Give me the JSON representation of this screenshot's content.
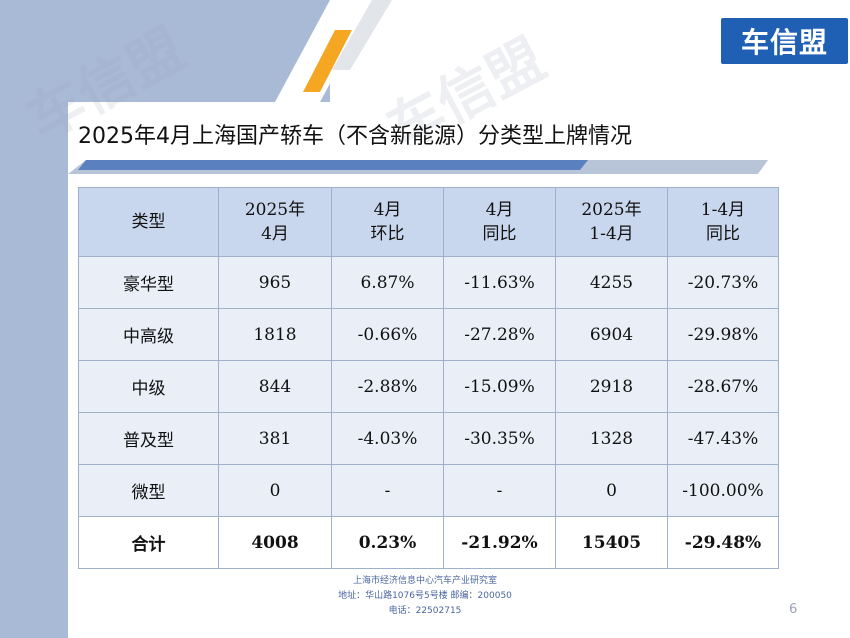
{
  "brand": {
    "logo_text": "车信盟",
    "watermark_text": "车信盟"
  },
  "title": "2025年4月上海国产轿车（不含新能源）分类型上牌情况",
  "table": {
    "headers": [
      [
        "类型"
      ],
      [
        "2025年",
        "4月"
      ],
      [
        "4月",
        "环比"
      ],
      [
        "4月",
        "同比"
      ],
      [
        "2025年",
        "1-4月"
      ],
      [
        "1-4月",
        "同比"
      ]
    ],
    "rows": [
      {
        "category": "豪华型",
        "april": "965",
        "mom": "6.87%",
        "yoy": "-11.63%",
        "ytd": "4255",
        "ytd_yoy": "-20.73%"
      },
      {
        "category": "中高级",
        "april": "1818",
        "mom": "-0.66%",
        "yoy": "-27.28%",
        "ytd": "6904",
        "ytd_yoy": "-29.98%"
      },
      {
        "category": "中级",
        "april": "844",
        "mom": "-2.88%",
        "yoy": "-15.09%",
        "ytd": "2918",
        "ytd_yoy": "-28.67%"
      },
      {
        "category": "普及型",
        "april": "381",
        "mom": "-4.03%",
        "yoy": "-30.35%",
        "ytd": "1328",
        "ytd_yoy": "-47.43%"
      },
      {
        "category": "微型",
        "april": "0",
        "mom": "-",
        "yoy": "-",
        "ytd": "0",
        "ytd_yoy": "-100.00%"
      }
    ],
    "total": {
      "category": "合计",
      "april": "4008",
      "mom": "0.23%",
      "yoy": "-21.92%",
      "ytd": "15405",
      "ytd_yoy": "-29.48%"
    }
  },
  "footer": {
    "line1": "上海市经济信息中心汽车产业研究室",
    "line2": "地址：华山路1076号5号楼    邮编：200050",
    "line3": "电话：22502715"
  },
  "page_number": "6",
  "colors": {
    "accent": "#1f5fb4",
    "panel": "#a9bad6",
    "header_bg": "#c9d7ee",
    "row_bg": "#e9eef7",
    "orange": "#f5a623"
  }
}
